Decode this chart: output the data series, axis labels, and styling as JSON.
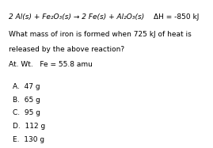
{
  "background_color": "#ffffff",
  "text_color": "#000000",
  "eq_part1": "2 Al(",
  "eq_s1": "s",
  "eq_part2": ") + Fe",
  "eq_sub1": "2",
  "eq_part3": "O",
  "eq_sub2": "3",
  "eq_part4": "(",
  "eq_s2": "s",
  "eq_part5": ") → 2 Fe(",
  "eq_s3": "s",
  "eq_part6": ") + Al",
  "eq_sub3": "2",
  "eq_part7": "O",
  "eq_sub4": "3",
  "eq_part8": "(",
  "eq_s4": "s",
  "eq_part9": ")",
  "equation_full": "2 Al(s) + Fe₂O₃(s) → 2 Fe(s) + Al₂O₃(s)",
  "delta_h": "ΔH = -850 kJ",
  "question_line1": "What mass of iron is formed when 725 kJ of heat is",
  "question_line2": "released by the above reaction?",
  "at_wt_line": "At. Wt.   Fe = 55.8 amu",
  "choices": [
    "A.  47 g",
    "B.  65 g",
    "C.  95 g",
    "D.  112 g",
    "E.  130 g"
  ],
  "font_size_eq": 6.5,
  "font_size_text": 6.5,
  "font_size_choices": 6.5,
  "fig_width": 2.69,
  "fig_height": 1.87,
  "dpi": 100
}
